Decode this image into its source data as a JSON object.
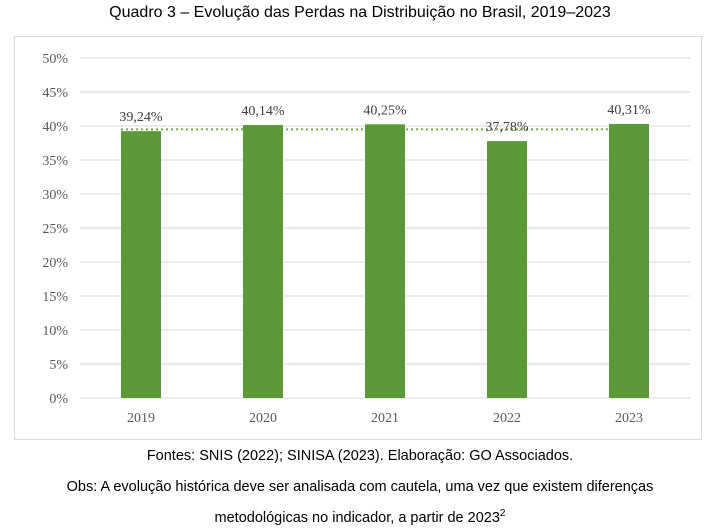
{
  "chart_data": {
    "type": "bar",
    "title": "Quadro 3 – Evolução das Perdas na Distribuição no Brasil, 2019–2023",
    "categories": [
      "2019",
      "2020",
      "2021",
      "2022",
      "2023"
    ],
    "values": [
      39.24,
      40.14,
      40.25,
      37.78,
      40.31
    ],
    "value_labels": [
      "39,24%",
      "40,14%",
      "40,25%",
      "37,78%",
      "40,31%"
    ],
    "yticks": [
      0,
      5,
      10,
      15,
      20,
      25,
      30,
      35,
      40,
      45,
      50
    ],
    "ytick_labels": [
      "0%",
      "5%",
      "10%",
      "15%",
      "20%",
      "25%",
      "30%",
      "35%",
      "40%",
      "45%",
      "50%"
    ],
    "ylim": [
      0,
      50
    ],
    "trend_line": {
      "style": "dotted",
      "value_approx": 39.5
    },
    "colors": {
      "bar": "#5a9a36",
      "trend": "#70ad47",
      "grid": "#d9d9d9"
    },
    "xlabel": "",
    "ylabel": ""
  },
  "footer": {
    "sources": "Fontes: SNIS (2022); SINISA (2023). Elaboração: GO Associados.",
    "obs_line1": "Obs: A evolução histórica deve ser analisada com cautela, uma vez que existem diferenças",
    "obs_line2": "metodológicas no indicador, a partir de 2023",
    "obs_note": "2"
  }
}
